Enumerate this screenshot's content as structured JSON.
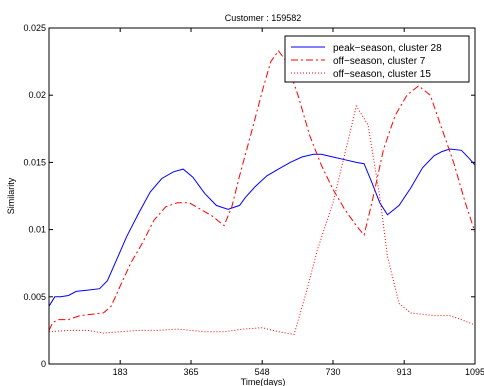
{
  "chart_data": {
    "type": "line",
    "title": "Customer : 159582",
    "xlabel": "Time(days)",
    "ylabel": "Similarity",
    "xlim": [
      0,
      1095
    ],
    "ylim": [
      0,
      0.025
    ],
    "xticks": [
      183,
      365,
      548,
      730,
      913,
      1095
    ],
    "yticks": [
      0,
      0.005,
      0.01,
      0.015,
      0.02,
      0.025
    ],
    "ytick_labels": [
      "0",
      "0.005",
      "0.01",
      "0.015",
      "0.02",
      "0.025"
    ],
    "grid": false,
    "legend_position": "top-right",
    "series": [
      {
        "name": "peak−season, cluster 28",
        "color": "#0000ff",
        "style": "solid",
        "x": [
          0,
          15,
          30,
          50,
          70,
          100,
          130,
          150,
          170,
          200,
          230,
          260,
          290,
          320,
          345,
          370,
          400,
          430,
          460,
          490,
          505,
          530,
          560,
          590,
          620,
          650,
          680,
          700,
          730,
          760,
          790,
          810,
          830,
          850,
          870,
          900,
          930,
          960,
          990,
          1010,
          1030,
          1060,
          1080,
          1095
        ],
        "y": [
          0.0043,
          0.005,
          0.005,
          0.0051,
          0.0054,
          0.0055,
          0.0056,
          0.0062,
          0.0075,
          0.0095,
          0.0112,
          0.0128,
          0.0138,
          0.0143,
          0.0145,
          0.0139,
          0.0127,
          0.0118,
          0.0115,
          0.0118,
          0.0124,
          0.0132,
          0.014,
          0.0145,
          0.015,
          0.0154,
          0.0156,
          0.0156,
          0.0154,
          0.0152,
          0.015,
          0.0149,
          0.0135,
          0.012,
          0.0111,
          0.0118,
          0.0131,
          0.0146,
          0.0155,
          0.0158,
          0.016,
          0.0159,
          0.0153,
          0.0148
        ]
      },
      {
        "name": "off−season, cluster 7",
        "color": "#ff0000",
        "style": "dashdot",
        "x": [
          0,
          10,
          25,
          50,
          80,
          110,
          140,
          160,
          183,
          210,
          240,
          270,
          300,
          330,
          360,
          390,
          420,
          450,
          470,
          490,
          520,
          550,
          570,
          590,
          610,
          640,
          670,
          700,
          730,
          760,
          790,
          810,
          830,
          860,
          890,
          920,
          950,
          980,
          1010,
          1040,
          1070,
          1095
        ],
        "y": [
          0.0025,
          0.0031,
          0.0033,
          0.0033,
          0.0036,
          0.0037,
          0.0038,
          0.0043,
          0.0058,
          0.0075,
          0.009,
          0.0107,
          0.0117,
          0.012,
          0.012,
          0.0115,
          0.011,
          0.0103,
          0.0117,
          0.014,
          0.0172,
          0.0205,
          0.0225,
          0.0233,
          0.0225,
          0.02,
          0.017,
          0.0148,
          0.013,
          0.0115,
          0.0103,
          0.0096,
          0.012,
          0.016,
          0.0185,
          0.02,
          0.0207,
          0.02,
          0.0175,
          0.015,
          0.012,
          0.0098
        ]
      },
      {
        "name": "off−season, cluster 15",
        "color": "#ff0000",
        "style": "dotted",
        "x": [
          0,
          50,
          100,
          140,
          183,
          230,
          280,
          330,
          365,
          400,
          450,
          500,
          548,
          590,
          630,
          660,
          690,
          730,
          770,
          790,
          820,
          850,
          870,
          900,
          930,
          960,
          990,
          1030,
          1060,
          1095
        ],
        "y": [
          0.0024,
          0.0025,
          0.0025,
          0.0023,
          0.0024,
          0.0025,
          0.0025,
          0.0026,
          0.0025,
          0.0024,
          0.0024,
          0.0026,
          0.0027,
          0.0024,
          0.0022,
          0.0052,
          0.0085,
          0.012,
          0.0168,
          0.0192,
          0.0178,
          0.0125,
          0.008,
          0.0045,
          0.0038,
          0.0037,
          0.0036,
          0.0036,
          0.0033,
          0.0029
        ]
      }
    ]
  }
}
